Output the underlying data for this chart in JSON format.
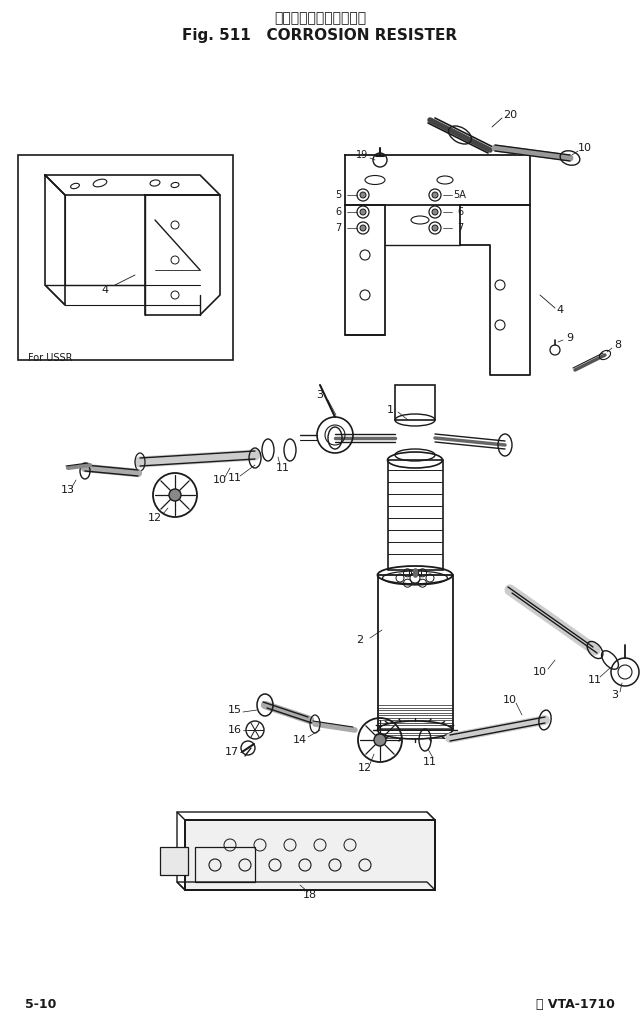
{
  "title_japanese": "コロージョン　レジスタ",
  "title_english": "Fig. 511   CORROSION RESISTER",
  "footer_left": "5-10",
  "footer_right": "Ⓒ VTA-1710",
  "bg_color": "#ffffff",
  "line_color": "#1a1a1a",
  "fig_width": 6.4,
  "fig_height": 10.19
}
